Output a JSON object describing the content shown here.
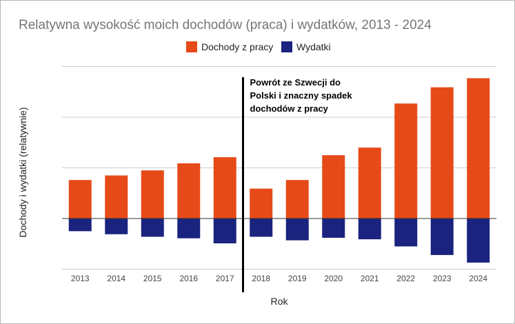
{
  "chart_data": {
    "type": "bar",
    "title": "Relatywna wysokość moich dochodów (praca) i wydatków, 2013 - 2024",
    "xlabel": "Rok",
    "ylabel": "Dochody i wydatki (relatywnie)",
    "categories": [
      "2013",
      "2014",
      "2015",
      "2016",
      "2017",
      "2018",
      "2019",
      "2020",
      "2021",
      "2022",
      "2023",
      "2024"
    ],
    "series": [
      {
        "name": "Dochody z pracy",
        "color": "#e64a19",
        "values": [
          0.76,
          0.85,
          0.95,
          1.09,
          1.21,
          0.59,
          0.76,
          1.25,
          1.4,
          2.27,
          2.59,
          2.77
        ]
      },
      {
        "name": "Wydatki",
        "color": "#1a237e",
        "values": [
          -0.25,
          -0.31,
          -0.36,
          -0.39,
          -0.49,
          -0.36,
          -0.43,
          -0.38,
          -0.41,
          -0.55,
          -0.72,
          -0.87
        ]
      }
    ],
    "ylim": [
      -1.0,
      3.0
    ],
    "grid": true,
    "legend_position": "top",
    "annotation": {
      "after_category": "2017",
      "lines": [
        "Powrót ze Szwecji do",
        "Polski i znaczny spadek",
        "dochodów z pracy"
      ]
    }
  }
}
